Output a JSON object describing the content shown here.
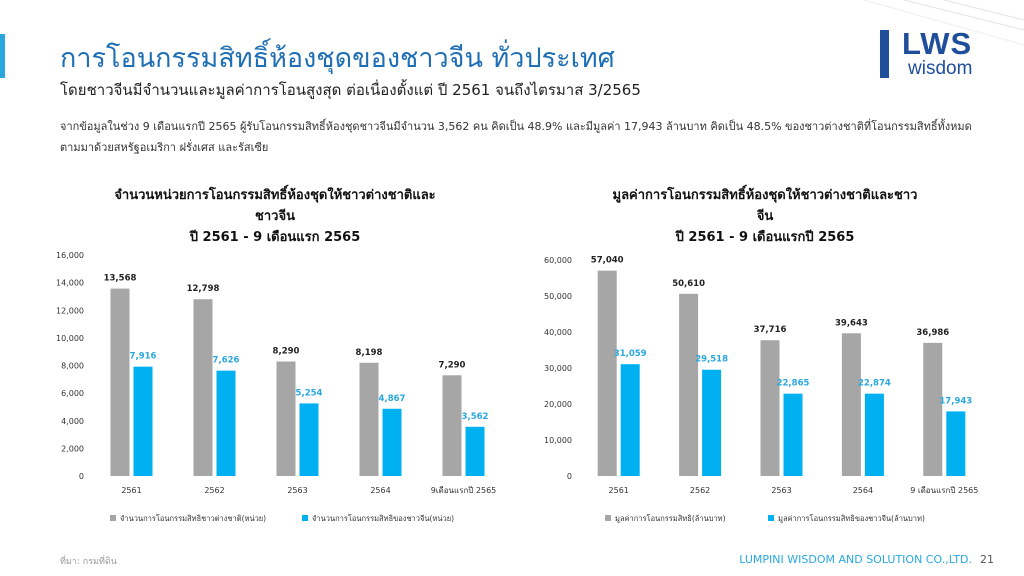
{
  "header": {
    "title": "การโอนกรรมสิทธิ์ห้องชุดของชาวจีน ทั่วประเทศ",
    "subtitle": "โดยชาวจีนมีจำนวนและมูลค่าการโอนสูงสุด ต่อเนื่องตั้งแต่ ปี 2561 จนถึงไตรมาส 3/2565",
    "description": "จากข้อมูลในช่วง 9 เดือนแรกปี 2565 ผู้รับโอนกรรมสิทธิ์ห้องชุดชาวจีนมีจำนวน 3,562 คน คิดเป็น 48.9% และมีมูลค่า 17,943 ล้านบาท คิดเป็น 48.5% ของชาวต่างชาติที่โอนกรรมสิทธิ์ทั้งหมด ตามมาด้วยสหรัฐอเมริกา ฝรั่งเศส และรัสเซีย"
  },
  "logo": {
    "brand": "LWS",
    "sub": "wisdom"
  },
  "footer": {
    "source": "ที่มา: กรมที่ดิน",
    "company": "LUMPINI WISDOM AND SOLUTION CO.,LTD.",
    "page": "21"
  },
  "colors": {
    "gray": "#a6a6a6",
    "blue": "#00b0f0",
    "title": "#1f6fb5",
    "accent": "#29a8e0"
  },
  "chart_data": [
    {
      "type": "bar",
      "title_lines": [
        "จำนวนหน่วยการโอนกรรมสิทธิ์ห้องชุดให้ชาวต่างชาติและ",
        "ชาวจีน",
        "ปี 2561 - 9 เดือนแรก 2565"
      ],
      "categories": [
        "2561",
        "2562",
        "2563",
        "2564",
        "9เดือนแรกปี 2565"
      ],
      "series": [
        {
          "name": "จำนวนการโอนกรรมสิทธิชาวต่างชาติ(หน่วย)",
          "values": [
            13568,
            12798,
            8290,
            8198,
            7290
          ],
          "labels": [
            "13,568",
            "12,798",
            "8,290",
            "8,198",
            "7,290"
          ],
          "color": "#a6a6a6"
        },
        {
          "name": "จำนวนการโอนกรรมสิทธิของชาวจีน(หน่วย)",
          "values": [
            7916,
            7626,
            5254,
            4867,
            3562
          ],
          "labels": [
            "7,916",
            "7,626",
            "5,254",
            "4,867",
            "3,562"
          ],
          "color": "#00b0f0"
        }
      ],
      "ylim": [
        0,
        16000
      ],
      "yticks": [
        0,
        2000,
        4000,
        6000,
        8000,
        10000,
        12000,
        14000,
        16000
      ],
      "ytick_labels": [
        "0",
        "2,000",
        "4,000",
        "6,000",
        "8,000",
        "10,000",
        "12,000",
        "14,000",
        "16,000"
      ],
      "legend_position": "bottom"
    },
    {
      "type": "bar",
      "title_lines": [
        "มูลค่าการโอนกรรมสิทธิ์ห้องชุดให้ชาวต่างชาติและชาว",
        "จีน",
        "ปี 2561 - 9 เดือนแรกปี 2565"
      ],
      "categories": [
        "2561",
        "2562",
        "2563",
        "2564",
        "9 เดือนแรกปี 2565"
      ],
      "series": [
        {
          "name": "มูลค่าการโอนกรรมสิทธิ(ล้านบาท)",
          "values": [
            57040,
            50610,
            37716,
            39643,
            36986
          ],
          "labels": [
            "57,040",
            "50,610",
            "37,716",
            "39,643",
            "36,986"
          ],
          "color": "#a6a6a6"
        },
        {
          "name": "มูลค่าการโอนกรรมสิทธิของชาวจีน(ล้านบาท)",
          "values": [
            31059,
            29518,
            22865,
            22874,
            17943
          ],
          "labels": [
            "31,059",
            "29,518",
            "22,865",
            "22,874",
            "17,943"
          ],
          "color": "#00b0f0"
        }
      ],
      "ylim": [
        0,
        60000
      ],
      "yticks": [
        0,
        10000,
        20000,
        30000,
        40000,
        50000,
        60000
      ],
      "ytick_labels": [
        "0",
        "10,000",
        "20,000",
        "30,000",
        "40,000",
        "50,000",
        "60,000"
      ],
      "legend_position": "bottom"
    }
  ]
}
